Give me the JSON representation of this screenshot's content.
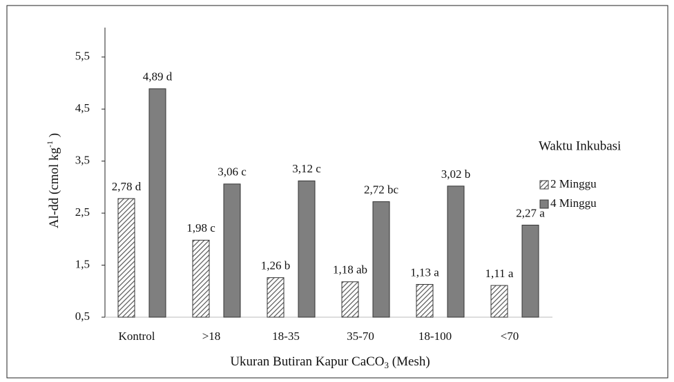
{
  "chart_data": {
    "type": "bar",
    "xlabel": [
      "Ukuran Butiran Kapur CaCO",
      "3",
      " (Mesh)"
    ],
    "ylabel": [
      "Al-dd (cmol kg",
      "-1",
      " )"
    ],
    "categories": [
      "Kontrol",
      ">18",
      "18-35",
      "35-70",
      "18-100",
      "<70"
    ],
    "legend_title": "Waktu Inkubasi",
    "series": [
      {
        "name": "2 Minggu",
        "color": "#7f7f7f",
        "pattern": "hatch",
        "values": [
          2.78,
          1.98,
          1.26,
          1.18,
          1.13,
          1.11
        ],
        "value_labels": [
          "2,78 d",
          "1,98 c",
          "1,26 b",
          "1,18 ab",
          "1,13 a",
          "1,11 a"
        ]
      },
      {
        "name": "4 Minggu",
        "color": "#7f7f7f",
        "pattern": "solid",
        "values": [
          4.89,
          3.06,
          3.12,
          2.72,
          3.02,
          2.27
        ],
        "value_labels": [
          "4,89 d",
          "3,06 c",
          "3,12 c",
          "2,72 bc",
          "3,02 b",
          "2,27 a"
        ]
      }
    ],
    "ylim": [
      0.5,
      6.0
    ],
    "yticks": [
      {
        "value": 0.5,
        "label": "0,5"
      },
      {
        "value": 1.5,
        "label": "1,5"
      },
      {
        "value": 2.5,
        "label": "2,5"
      },
      {
        "value": 3.5,
        "label": "3,5"
      },
      {
        "value": 4.5,
        "label": "4,5"
      },
      {
        "value": 5.5,
        "label": "5,5"
      }
    ],
    "grid": false,
    "legend": "right"
  }
}
